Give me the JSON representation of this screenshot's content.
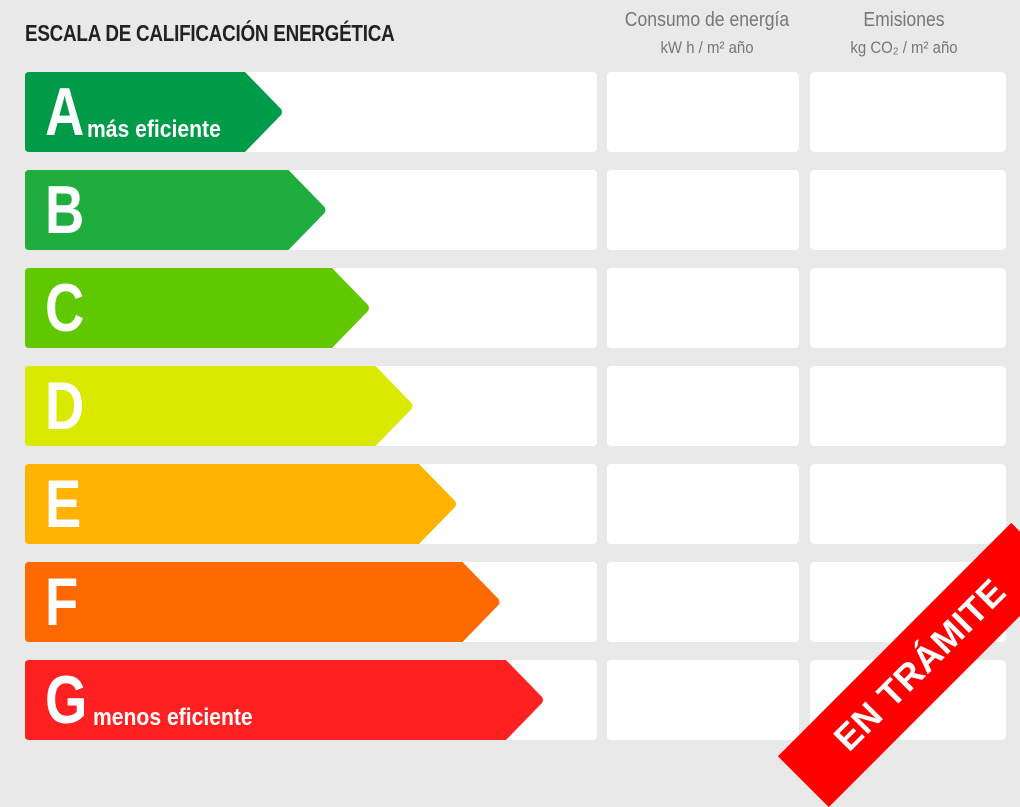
{
  "title": "ESCALA DE CALIFICACIÓN ENERGÉTICA",
  "columns": {
    "consumo": {
      "label": "Consumo de energía",
      "unit": "kW h / m² año"
    },
    "emisiones": {
      "label": "Emisiones",
      "unit": "kg CO₂ / m² año"
    }
  },
  "ratings": [
    {
      "letter": "A",
      "note": "más eficiente",
      "color": "#009b48"
    },
    {
      "letter": "B",
      "note": "",
      "color": "#1fae3e"
    },
    {
      "letter": "C",
      "note": "",
      "color": "#5fc800"
    },
    {
      "letter": "D",
      "note": "",
      "color": "#d9e900"
    },
    {
      "letter": "E",
      "note": "",
      "color": "#ffb300"
    },
    {
      "letter": "F",
      "note": "",
      "color": "#ff6a00"
    },
    {
      "letter": "G",
      "note": "menos eficiente",
      "color": "#ff2121"
    }
  ],
  "banner": {
    "text": "EN TRÁMITE",
    "color": "#ff0000"
  }
}
